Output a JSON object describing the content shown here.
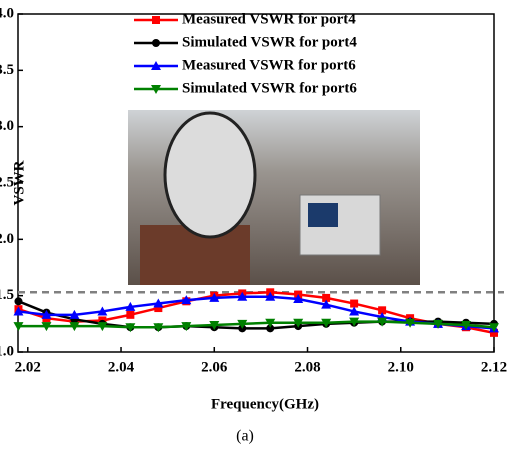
{
  "chart_data": {
    "type": "line",
    "caption": "(a)",
    "xlabel": "Frequency(GHz)",
    "ylabel": "VSWR",
    "x": [
      2.018,
      2.024,
      2.03,
      2.036,
      2.042,
      2.048,
      2.054,
      2.06,
      2.066,
      2.072,
      2.078,
      2.084,
      2.09,
      2.096,
      2.102,
      2.108,
      2.114,
      2.12
    ],
    "series": [
      {
        "name": "Measured VSWR for port4",
        "color": "#ff0000",
        "marker": "square",
        "values": [
          1.38,
          1.3,
          1.27,
          1.28,
          1.33,
          1.39,
          1.45,
          1.5,
          1.52,
          1.53,
          1.51,
          1.48,
          1.43,
          1.37,
          1.3,
          1.25,
          1.22,
          1.17
        ]
      },
      {
        "name": "Simulated VSWR for port4",
        "color": "#000000",
        "marker": "circle",
        "values": [
          1.45,
          1.35,
          1.29,
          1.25,
          1.22,
          1.22,
          1.23,
          1.22,
          1.21,
          1.21,
          1.23,
          1.25,
          1.26,
          1.27,
          1.27,
          1.27,
          1.26,
          1.25
        ]
      },
      {
        "name": "Measured VSWR for port6",
        "color": "#0000ff",
        "marker": "triangle-up",
        "values": [
          1.36,
          1.33,
          1.33,
          1.36,
          1.4,
          1.43,
          1.46,
          1.48,
          1.49,
          1.49,
          1.47,
          1.42,
          1.36,
          1.31,
          1.27,
          1.25,
          1.23,
          1.21
        ]
      },
      {
        "name": "Simulated VSWR for port6",
        "color": "#008000",
        "marker": "triangle-down",
        "values": [
          1.23,
          1.23,
          1.23,
          1.23,
          1.22,
          1.22,
          1.23,
          1.24,
          1.25,
          1.26,
          1.26,
          1.26,
          1.27,
          1.27,
          1.26,
          1.25,
          1.24,
          1.22
        ]
      }
    ],
    "hline": 1.53,
    "xlim": [
      2.0179,
      2.12
    ],
    "xticks": [
      2.02,
      2.04,
      2.06,
      2.08,
      {
        "value": 2.1,
        "label": "2.10"
      },
      2.12
    ],
    "ylim": [
      1,
      4
    ],
    "yticks": [
      {
        "value": 1,
        "label": "1.0"
      },
      1.5,
      {
        "value": 2,
        "label": "2.0"
      },
      2.5,
      {
        "value": 3,
        "label": "3.0"
      },
      3.5,
      {
        "value": 4,
        "label": "4.0"
      }
    ]
  }
}
